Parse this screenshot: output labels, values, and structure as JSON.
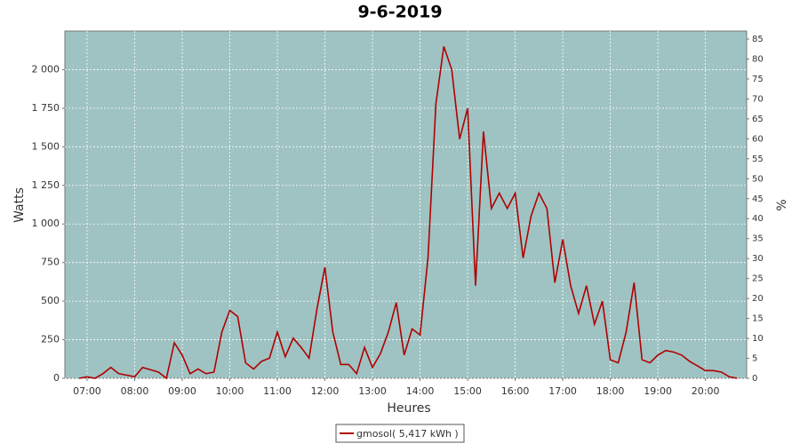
{
  "chart_data": {
    "type": "line",
    "title": "9-6-2019",
    "ylabel": "Watts",
    "xlabel": "Heures",
    "y2label": "%",
    "x": [
      "06:50",
      "07:00",
      "07:10",
      "07:20",
      "07:30",
      "07:40",
      "07:50",
      "08:00",
      "08:10",
      "08:20",
      "08:30",
      "08:40",
      "08:50",
      "09:00",
      "09:10",
      "09:20",
      "09:30",
      "09:40",
      "09:50",
      "10:00",
      "10:10",
      "10:20",
      "10:30",
      "10:40",
      "10:50",
      "11:00",
      "11:10",
      "11:20",
      "11:30",
      "11:40",
      "11:50",
      "12:00",
      "12:10",
      "12:20",
      "12:30",
      "12:40",
      "12:50",
      "13:00",
      "13:10",
      "13:20",
      "13:30",
      "13:40",
      "13:50",
      "14:00",
      "14:10",
      "14:20",
      "14:30",
      "14:40",
      "14:50",
      "15:00",
      "15:10",
      "15:20",
      "15:30",
      "15:40",
      "15:50",
      "16:00",
      "16:10",
      "16:20",
      "16:30",
      "16:40",
      "16:50",
      "17:00",
      "17:10",
      "17:20",
      "17:30",
      "17:40",
      "17:50",
      "18:00",
      "18:10",
      "18:20",
      "18:30",
      "18:40",
      "18:50",
      "19:00",
      "19:10",
      "19:20",
      "19:30",
      "19:40",
      "19:50",
      "20:00",
      "20:10",
      "20:20",
      "20:30",
      "20:40"
    ],
    "series": [
      {
        "name": "gmosol( 5,417 kWh )",
        "color": "#b00000",
        "values": [
          0,
          10,
          0,
          30,
          70,
          30,
          20,
          10,
          70,
          55,
          40,
          0,
          230,
          150,
          30,
          60,
          30,
          40,
          300,
          440,
          400,
          100,
          60,
          110,
          130,
          300,
          140,
          260,
          200,
          130,
          450,
          720,
          300,
          90,
          90,
          30,
          200,
          70,
          160,
          300,
          490,
          150,
          320,
          280,
          780,
          1780,
          2150,
          2000,
          1550,
          1750,
          600,
          1600,
          1100,
          1200,
          1100,
          1200,
          780,
          1050,
          1200,
          1100,
          620,
          900,
          600,
          420,
          600,
          350,
          500,
          120,
          100,
          300,
          620,
          120,
          100,
          150,
          180,
          170,
          150,
          110,
          80,
          50,
          50,
          40,
          10,
          0
        ]
      }
    ],
    "xlim": [
      "06:32",
      "20:52"
    ],
    "xticks": [
      "07:00",
      "08:00",
      "09:00",
      "10:00",
      "11:00",
      "12:00",
      "13:00",
      "14:00",
      "15:00",
      "16:00",
      "17:00",
      "18:00",
      "19:00",
      "20:00"
    ],
    "ylim": [
      0,
      2250
    ],
    "yticks": [
      0,
      250,
      500,
      750,
      {
        "value": 1000,
        "label": "1 000"
      },
      {
        "value": 1250,
        "label": "1 250"
      },
      {
        "value": 1500,
        "label": "1 500"
      },
      {
        "value": 1750,
        "label": "1 750"
      },
      {
        "value": 2000,
        "label": "2 000"
      }
    ],
    "y2lim": [
      0,
      87
    ],
    "y2ticks": [
      0,
      5,
      10,
      15,
      20,
      25,
      30,
      35,
      40,
      45,
      50,
      55,
      60,
      65,
      70,
      75,
      80,
      85
    ],
    "grid": true,
    "plot_background": "#9fc3c3",
    "legend": "bottom"
  }
}
